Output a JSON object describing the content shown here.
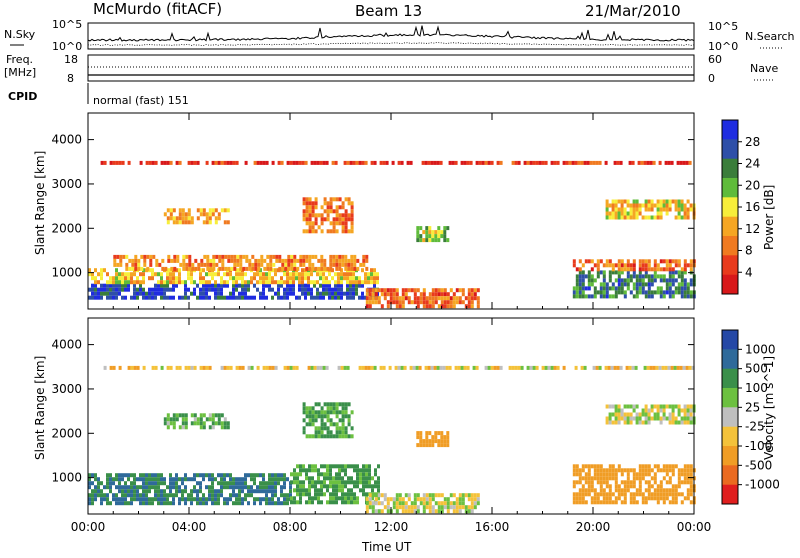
{
  "header": {
    "station": "McMurdo (fitACF)",
    "beam": "Beam 13",
    "date": "21/Mar/2010"
  },
  "top_panel": {
    "left_label": "N.Sky",
    "right_label": "N.Search",
    "left_ticks": [
      "10^5",
      "10^0"
    ],
    "right_ticks": [
      "10^5",
      "10^0"
    ]
  },
  "freq_panel": {
    "left_label_1": "Freq.",
    "left_label_2": "[MHz]",
    "left_ticks": [
      "18",
      "8"
    ],
    "right_label": "Nave",
    "right_ticks": [
      "60",
      "0"
    ]
  },
  "cpid_panel": {
    "label": "CPID",
    "text": "normal (fast) 151"
  },
  "colors": {
    "power": [
      "#1f2ce0",
      "#2e4fa8",
      "#3a7d3a",
      "#5fbb3a",
      "#f7ee3a",
      "#f5a623",
      "#f07a20",
      "#e83a1c",
      "#d8181a"
    ],
    "velocity": [
      "#2548a6",
      "#2f6a9a",
      "#3a8f4a",
      "#6cc040",
      "#bfbfbf",
      "#f4c23a",
      "#f09d25",
      "#ea6a20",
      "#e01e1e"
    ]
  },
  "chart_data": [
    {
      "type": "heatmap",
      "title": "",
      "xlabel": "Time UT",
      "ylabel": "Slant Range [km]",
      "xlim": [
        "00:00",
        "00:00"
      ],
      "ylim": [
        180,
        4600
      ],
      "x_ticks": [
        "00:00",
        "04:00",
        "08:00",
        "12:00",
        "16:00",
        "20:00",
        "00:00"
      ],
      "y_ticks": [
        "1000",
        "2000",
        "3000",
        "4000"
      ],
      "colorbar": {
        "label": "Power [dB]",
        "range": [
          0,
          32
        ],
        "ticks": [
          "28",
          "24",
          "20",
          "16",
          "12",
          "8",
          "4"
        ]
      },
      "regions": [
        {
          "t0": 0.0,
          "t1": 11.5,
          "r0": 400,
          "r1": 750,
          "value": 28
        },
        {
          "t0": 0.0,
          "t1": 11.5,
          "r0": 750,
          "r1": 1100,
          "value": 14
        },
        {
          "t0": 1.0,
          "t1": 11.0,
          "r0": 1100,
          "r1": 1400,
          "value": 10
        },
        {
          "t0": 3.0,
          "t1": 5.5,
          "r0": 2100,
          "r1": 2450,
          "value": 12
        },
        {
          "t0": 8.5,
          "t1": 10.5,
          "r0": 1900,
          "r1": 2700,
          "value": 9
        },
        {
          "t0": 13.0,
          "t1": 14.2,
          "r0": 1750,
          "r1": 2050,
          "value": 18
        },
        {
          "t0": 11.0,
          "t1": 15.5,
          "r0": 250,
          "r1": 650,
          "value": 8
        },
        {
          "t0": 19.2,
          "t1": 24.0,
          "r0": 450,
          "r1": 1050,
          "value": 24
        },
        {
          "t0": 19.2,
          "t1": 24.0,
          "r0": 1050,
          "r1": 1300,
          "value": 8
        },
        {
          "t0": 20.5,
          "t1": 24.0,
          "r0": 2200,
          "r1": 2650,
          "value": 14
        },
        {
          "t0": 0.5,
          "t1": 24.0,
          "r0": 3450,
          "r1": 3520,
          "value": 4
        }
      ]
    },
    {
      "type": "heatmap",
      "title": "",
      "xlabel": "Time UT",
      "ylabel": "Slant Range [km]",
      "xlim": [
        "00:00",
        "00:00"
      ],
      "ylim": [
        180,
        4600
      ],
      "x_ticks": [
        "00:00",
        "04:00",
        "08:00",
        "12:00",
        "16:00",
        "20:00",
        "00:00"
      ],
      "y_ticks": [
        "1000",
        "2000",
        "3000",
        "4000"
      ],
      "colorbar": {
        "label": "Velocity [m s^-1]",
        "ticks": [
          "1000",
          "500",
          "100",
          "25",
          "-25",
          "-100",
          "-500",
          "-1000"
        ]
      },
      "regions": [
        {
          "t0": 0.0,
          "t1": 8.0,
          "r0": 400,
          "r1": 1100,
          "value": 300
        },
        {
          "t0": 8.0,
          "t1": 11.5,
          "r0": 400,
          "r1": 1300,
          "value": 80
        },
        {
          "t0": 3.0,
          "t1": 5.5,
          "r0": 2100,
          "r1": 2450,
          "value": 60
        },
        {
          "t0": 8.5,
          "t1": 10.5,
          "r0": 1900,
          "r1": 2700,
          "value": 80
        },
        {
          "t0": 13.0,
          "t1": 14.2,
          "r0": 1750,
          "r1": 2050,
          "value": -200
        },
        {
          "t0": 11.0,
          "t1": 15.5,
          "r0": 250,
          "r1": 650,
          "value": 0
        },
        {
          "t0": 19.2,
          "t1": 24.0,
          "r0": 450,
          "r1": 1300,
          "value": -150
        },
        {
          "t0": 20.5,
          "t1": 24.0,
          "r0": 2200,
          "r1": 2650,
          "value": 0
        },
        {
          "t0": 0.5,
          "t1": 24.0,
          "r0": 3450,
          "r1": 3520,
          "value": -30
        }
      ]
    }
  ]
}
